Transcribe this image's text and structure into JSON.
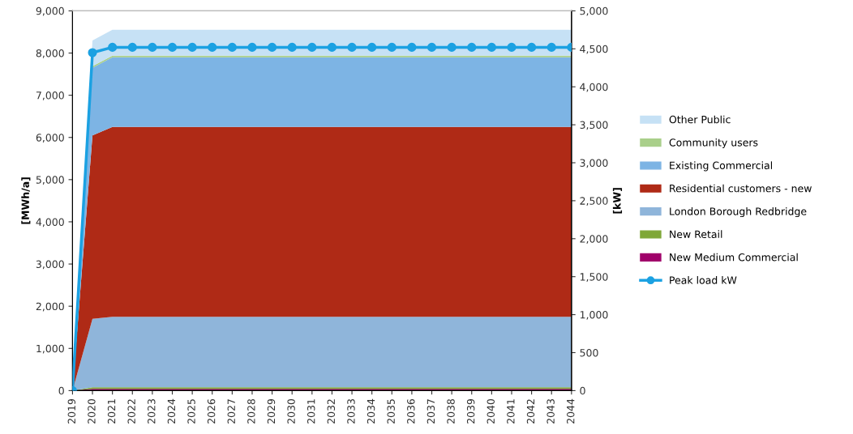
{
  "chart_data": {
    "type": "area",
    "stacked": true,
    "ylabel": "[MWh/a]",
    "y2label": "[kW]",
    "categories": [
      "2019",
      "2020",
      "2021",
      "2022",
      "2023",
      "2024",
      "2025",
      "2026",
      "2027",
      "2028",
      "2029",
      "2030",
      "2031",
      "2032",
      "2033",
      "2034",
      "2035",
      "2036",
      "2037",
      "2038",
      "2039",
      "2040",
      "2041",
      "2042",
      "2043",
      "2044"
    ],
    "series": [
      {
        "name": "New Medium Commercial",
        "color": "#a0006a",
        "values": [
          0,
          40,
          40,
          40,
          40,
          40,
          40,
          40,
          40,
          40,
          40,
          40,
          40,
          40,
          40,
          40,
          40,
          40,
          40,
          40,
          40,
          40,
          40,
          40,
          40,
          40
        ]
      },
      {
        "name": "New Retail",
        "color": "#7fa737",
        "values": [
          0,
          40,
          40,
          40,
          40,
          40,
          40,
          40,
          40,
          40,
          40,
          40,
          40,
          40,
          40,
          40,
          40,
          40,
          40,
          40,
          40,
          40,
          40,
          40,
          40,
          40
        ]
      },
      {
        "name": "London Borough Redbridge",
        "color": "#8fb5da",
        "values": [
          0,
          1620,
          1670,
          1670,
          1670,
          1670,
          1670,
          1670,
          1670,
          1670,
          1670,
          1670,
          1670,
          1670,
          1670,
          1670,
          1670,
          1670,
          1670,
          1670,
          1670,
          1670,
          1670,
          1670,
          1670,
          1670
        ]
      },
      {
        "name": "Residential customers - new",
        "color": "#af2a16",
        "values": [
          0,
          4350,
          4500,
          4500,
          4500,
          4500,
          4500,
          4500,
          4500,
          4500,
          4500,
          4500,
          4500,
          4500,
          4500,
          4500,
          4500,
          4500,
          4500,
          4500,
          4500,
          4500,
          4500,
          4500,
          4500,
          4500
        ]
      },
      {
        "name": "Existing Commercial",
        "color": "#7db4e4",
        "values": [
          0,
          1600,
          1650,
          1650,
          1650,
          1650,
          1650,
          1650,
          1650,
          1650,
          1650,
          1650,
          1650,
          1650,
          1650,
          1650,
          1650,
          1650,
          1650,
          1650,
          1650,
          1650,
          1650,
          1650,
          1650,
          1650
        ]
      },
      {
        "name": "Community users",
        "color": "#a9cf8a",
        "values": [
          0,
          40,
          40,
          40,
          40,
          40,
          40,
          40,
          40,
          40,
          40,
          40,
          40,
          40,
          40,
          40,
          40,
          40,
          40,
          40,
          40,
          40,
          40,
          40,
          40,
          40
        ]
      },
      {
        "name": "Other Public",
        "color": "#c6e1f5",
        "values": [
          0,
          610,
          610,
          610,
          610,
          610,
          610,
          610,
          610,
          610,
          610,
          610,
          610,
          610,
          610,
          610,
          610,
          610,
          610,
          610,
          610,
          610,
          610,
          610,
          610,
          610
        ]
      },
      {
        "name": "Peak load kW",
        "type": "line",
        "axis": "y2",
        "marker": "circle",
        "color": "#1ba1e2",
        "values": [
          0,
          4450,
          4520,
          4520,
          4520,
          4520,
          4520,
          4520,
          4520,
          4520,
          4520,
          4520,
          4520,
          4520,
          4520,
          4520,
          4520,
          4520,
          4520,
          4520,
          4520,
          4520,
          4520,
          4520,
          4520,
          4520
        ]
      }
    ],
    "ylim": [
      0,
      9000
    ],
    "yticks": [
      0,
      {
        "value": 1000,
        "label": "1,000"
      },
      {
        "value": 2000,
        "label": "2,000"
      },
      {
        "value": 3000,
        "label": "3,000"
      },
      {
        "value": 4000,
        "label": "4,000"
      },
      {
        "value": 5000,
        "label": "5,000"
      },
      {
        "value": 6000,
        "label": "6,000"
      },
      {
        "value": 7000,
        "label": "7,000"
      },
      {
        "value": 8000,
        "label": "8,000"
      },
      {
        "value": 9000,
        "label": "9,000"
      }
    ],
    "y2lim": [
      0,
      5000
    ],
    "y2ticks": [
      0,
      500,
      {
        "value": 1000,
        "label": "1,000"
      },
      {
        "value": 1500,
        "label": "1,500"
      },
      {
        "value": 2000,
        "label": "2,000"
      },
      {
        "value": 2500,
        "label": "2,500"
      },
      {
        "value": 3000,
        "label": "3,000"
      },
      {
        "value": 3500,
        "label": "3,500"
      },
      {
        "value": 4000,
        "label": "4,000"
      },
      {
        "value": 4500,
        "label": "4,500"
      },
      {
        "value": 5000,
        "label": "5,000"
      }
    ],
    "grid": false,
    "legend": "right"
  }
}
